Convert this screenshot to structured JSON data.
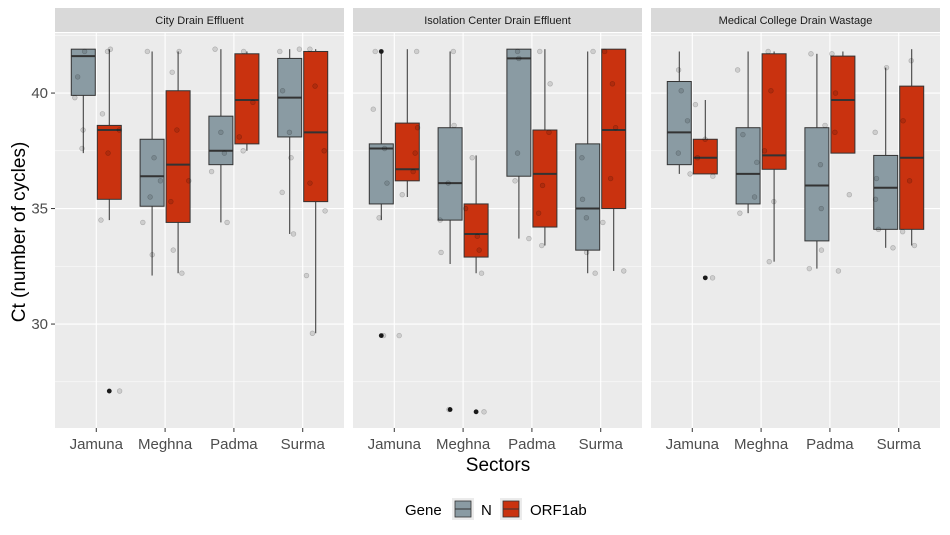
{
  "chart_data": {
    "type": "boxplot",
    "xlabel": "Sectors",
    "ylabel": "Ct (number of cycles)",
    "ylim": [
      25.5,
      42.6
    ],
    "y_ticks": [
      30,
      35,
      40
    ],
    "categories": [
      "Jamuna",
      "Meghna",
      "Padma",
      "Surma"
    ],
    "legend": {
      "title": "Gene",
      "position": "bottom",
      "entries": [
        "N",
        "ORF1ab"
      ]
    },
    "colors": {
      "N": "#8a9ba3",
      "ORF1ab": "#c9320f",
      "panel_bg": "#ebebeb",
      "strip_bg": "#d9d9d9",
      "grid": "#ffffff"
    },
    "facets": [
      {
        "title": "City Drain Effluent",
        "series": [
          {
            "name": "N",
            "boxes": [
              {
                "category": "Jamuna",
                "min": 37.4,
                "q1": 39.9,
                "median": 41.6,
                "q3": 41.9,
                "max": 41.9,
                "outliers": [],
                "points": [
                  38.4,
                  41.8,
                  39.8,
                  40.7,
                  37.6
                ]
              },
              {
                "category": "Meghna",
                "min": 32.1,
                "q1": 35.1,
                "median": 36.4,
                "q3": 38.0,
                "max": 41.8,
                "outliers": [],
                "points": [
                  33.0,
                  34.4,
                  36.2,
                  37.2,
                  35.5,
                  41.8
                ]
              },
              {
                "category": "Padma",
                "min": 34.4,
                "q1": 36.9,
                "median": 37.5,
                "q3": 39.0,
                "max": 41.9,
                "outliers": [],
                "points": [
                  34.4,
                  37.4,
                  36.6,
                  38.3,
                  41.9
                ]
              },
              {
                "category": "Surma",
                "min": 33.9,
                "q1": 38.1,
                "median": 39.8,
                "q3": 41.5,
                "max": 41.9,
                "outliers": [],
                "points": [
                  33.9,
                  35.7,
                  37.2,
                  38.3,
                  40.1,
                  41.8,
                  41.9
                ]
              }
            ]
          },
          {
            "name": "ORF1ab",
            "boxes": [
              {
                "category": "Jamuna",
                "min": 34.5,
                "q1": 35.4,
                "median": 38.4,
                "q3": 38.6,
                "max": 41.9,
                "outliers": [
                  27.1
                ],
                "points": [
                  27.1,
                  34.5,
                  37.4,
                  38.4,
                  39.1,
                  41.8,
                  41.9
                ]
              },
              {
                "category": "Meghna",
                "min": 32.2,
                "q1": 34.4,
                "median": 36.9,
                "q3": 40.1,
                "max": 41.8,
                "outliers": [],
                "points": [
                  32.2,
                  33.2,
                  35.3,
                  36.2,
                  38.4,
                  40.9,
                  41.8
                ]
              },
              {
                "category": "Padma",
                "min": 37.5,
                "q1": 37.8,
                "median": 39.7,
                "q3": 41.7,
                "max": 41.8,
                "outliers": [],
                "points": [
                  37.5,
                  38.1,
                  39.6,
                  41.8
                ]
              },
              {
                "category": "Surma",
                "min": 29.6,
                "q1": 35.3,
                "median": 38.3,
                "q3": 41.8,
                "max": 41.9,
                "outliers": [],
                "points": [
                  29.6,
                  32.1,
                  34.9,
                  36.1,
                  37.5,
                  40.3,
                  41.9
                ]
              }
            ]
          }
        ]
      },
      {
        "title": "Isolation Center Drain Effluent",
        "series": [
          {
            "name": "N",
            "boxes": [
              {
                "category": "Jamuna",
                "min": 34.5,
                "q1": 35.2,
                "median": 37.6,
                "q3": 37.8,
                "max": 41.8,
                "outliers": [
                  29.5,
                  41.8
                ],
                "points": [
                  29.5,
                  34.6,
                  36.1,
                  37.6,
                  39.3,
                  41.8
                ]
              },
              {
                "category": "Meghna",
                "min": 32.6,
                "q1": 34.5,
                "median": 36.1,
                "q3": 38.5,
                "max": 41.8,
                "outliers": [
                  26.3
                ],
                "points": [
                  26.3,
                  33.1,
                  34.5,
                  36.1,
                  38.6,
                  41.8
                ]
              },
              {
                "category": "Padma",
                "min": 33.7,
                "q1": 36.4,
                "median": 41.5,
                "q3": 41.9,
                "max": 41.9,
                "outliers": [],
                "points": [
                  33.7,
                  36.2,
                  37.4,
                  41.5,
                  41.8
                ]
              },
              {
                "category": "Surma",
                "min": 32.2,
                "q1": 33.2,
                "median": 35.0,
                "q3": 37.8,
                "max": 41.8,
                "outliers": [],
                "points": [
                  32.2,
                  33.1,
                  34.6,
                  35.4,
                  37.2,
                  41.8
                ]
              }
            ]
          },
          {
            "name": "ORF1ab",
            "boxes": [
              {
                "category": "Jamuna",
                "min": 35.5,
                "q1": 36.2,
                "median": 36.7,
                "q3": 38.7,
                "max": 41.9,
                "outliers": [],
                "points": [
                  29.5,
                  35.6,
                  36.6,
                  37.4,
                  38.5,
                  41.8
                ]
              },
              {
                "category": "Meghna",
                "min": 32.2,
                "q1": 32.9,
                "median": 33.9,
                "q3": 35.2,
                "max": 37.3,
                "outliers": [
                  26.2
                ],
                "points": [
                  26.2,
                  32.2,
                  33.2,
                  33.8,
                  35.0,
                  37.2
                ]
              },
              {
                "category": "Padma",
                "min": 33.4,
                "q1": 34.2,
                "median": 36.5,
                "q3": 38.4,
                "max": 41.9,
                "outliers": [],
                "points": [
                  33.4,
                  34.8,
                  36.0,
                  38.3,
                  40.4,
                  41.8
                ]
              },
              {
                "category": "Surma",
                "min": 32.3,
                "q1": 35.0,
                "median": 38.4,
                "q3": 41.9,
                "max": 41.9,
                "outliers": [],
                "points": [
                  32.3,
                  34.4,
                  36.3,
                  38.5,
                  40.4,
                  41.8
                ]
              }
            ]
          }
        ]
      },
      {
        "title": "Medical College Drain Wastage",
        "series": [
          {
            "name": "N",
            "boxes": [
              {
                "category": "Jamuna",
                "min": 36.5,
                "q1": 36.9,
                "median": 38.3,
                "q3": 40.5,
                "max": 41.8,
                "outliers": [],
                "points": [
                  36.5,
                  37.4,
                  38.8,
                  40.1,
                  41.0
                ]
              },
              {
                "category": "Meghna",
                "min": 34.8,
                "q1": 35.2,
                "median": 36.5,
                "q3": 38.5,
                "max": 41.8,
                "outliers": [],
                "points": [
                  34.8,
                  35.5,
                  37.0,
                  38.2,
                  41.0
                ]
              },
              {
                "category": "Padma",
                "min": 32.4,
                "q1": 33.6,
                "median": 36.0,
                "q3": 38.5,
                "max": 41.7,
                "outliers": [],
                "points": [
                  32.4,
                  33.2,
                  35.0,
                  36.9,
                  38.6,
                  41.7
                ]
              },
              {
                "category": "Surma",
                "min": 33.3,
                "q1": 34.1,
                "median": 35.9,
                "q3": 37.3,
                "max": 41.1,
                "outliers": [],
                "points": [
                  33.3,
                  34.1,
                  35.4,
                  36.3,
                  38.3,
                  41.1
                ]
              }
            ]
          },
          {
            "name": "ORF1ab",
            "boxes": [
              {
                "category": "Jamuna",
                "min": 36.5,
                "q1": 36.5,
                "median": 37.2,
                "q3": 38.0,
                "max": 39.7,
                "outliers": [
                  32.0
                ],
                "points": [
                  32.0,
                  36.4,
                  37.2,
                  38.0,
                  39.5
                ]
              },
              {
                "category": "Meghna",
                "min": 32.7,
                "q1": 36.7,
                "median": 37.3,
                "q3": 41.7,
                "max": 41.8,
                "outliers": [],
                "points": [
                  32.7,
                  35.3,
                  37.5,
                  40.1,
                  41.8
                ]
              },
              {
                "category": "Padma",
                "min": 37.4,
                "q1": 37.4,
                "median": 39.7,
                "q3": 41.6,
                "max": 41.8,
                "outliers": [],
                "points": [
                  32.3,
                  35.6,
                  38.3,
                  40.0,
                  41.7
                ]
              },
              {
                "category": "Surma",
                "min": 33.4,
                "q1": 34.1,
                "median": 37.2,
                "q3": 40.3,
                "max": 41.9,
                "outliers": [],
                "points": [
                  33.4,
                  34.0,
                  36.2,
                  38.8,
                  41.4
                ]
              }
            ]
          }
        ]
      }
    ]
  }
}
